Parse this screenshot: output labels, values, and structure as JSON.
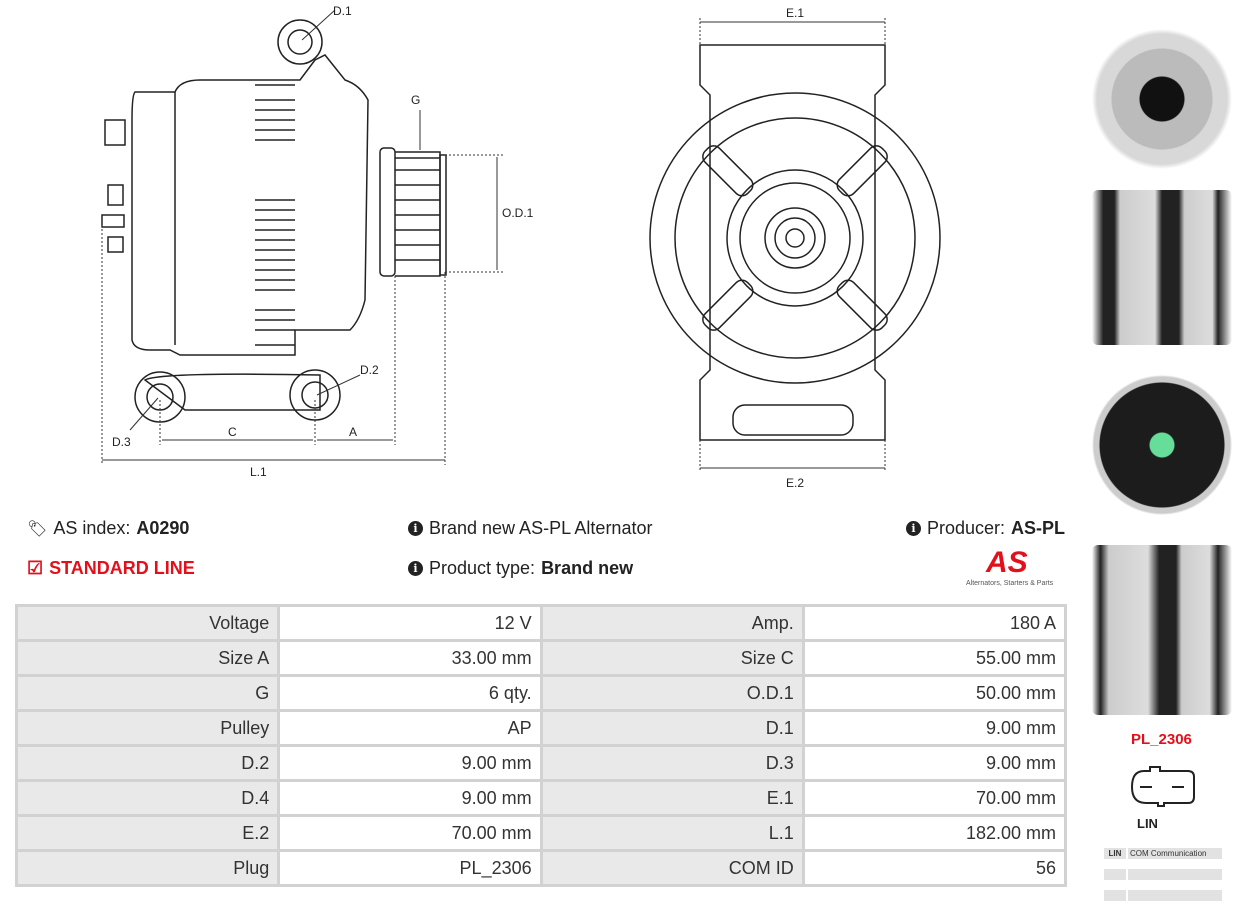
{
  "drawing_left": {
    "labels": {
      "d1": "D.1",
      "g": "G",
      "od1": "O.D.1",
      "d2": "D.2",
      "d3": "D.3",
      "c": "C",
      "a": "A",
      "l1": "L.1"
    }
  },
  "drawing_front": {
    "labels": {
      "e1": "E.1",
      "e2": "E.2"
    }
  },
  "info": {
    "as_index_label": "AS index:",
    "as_index_value": "A0290",
    "standard_line": "STANDARD LINE",
    "description": "Brand new AS-PL Alternator",
    "product_type_label": "Product type:",
    "product_type_value": "Brand new",
    "producer_label": "Producer:",
    "producer_value": "AS-PL",
    "logo_text": "AS",
    "logo_tagline": "Alternators, Starters & Parts",
    "accent_color": "#e3101b"
  },
  "specs": [
    [
      {
        "label": "Voltage",
        "value": "12 V"
      },
      {
        "label": "Amp.",
        "value": "180 A"
      }
    ],
    [
      {
        "label": "Size A",
        "value": "33.00 mm"
      },
      {
        "label": "Size C",
        "value": "55.00 mm"
      }
    ],
    [
      {
        "label": "G",
        "value": "6 qty."
      },
      {
        "label": "O.D.1",
        "value": "50.00 mm"
      }
    ],
    [
      {
        "label": "Pulley",
        "value": "AP"
      },
      {
        "label": "D.1",
        "value": "9.00 mm"
      }
    ],
    [
      {
        "label": "D.2",
        "value": "9.00 mm"
      },
      {
        "label": "D.3",
        "value": "9.00 mm"
      }
    ],
    [
      {
        "label": "D.4",
        "value": "9.00 mm"
      },
      {
        "label": "E.1",
        "value": "70.00 mm"
      }
    ],
    [
      {
        "label": "E.2",
        "value": "70.00 mm"
      },
      {
        "label": "L.1",
        "value": "182.00 mm"
      }
    ],
    [
      {
        "label": "Plug",
        "value": "PL_2306"
      },
      {
        "label": "COM ID",
        "value": "56"
      }
    ]
  ],
  "connector": {
    "plug_code": "PL_2306",
    "plug_type": "LIN",
    "pins": [
      {
        "pin": "LIN",
        "desc": "COM Communication"
      },
      {
        "pin": "",
        "desc": ""
      },
      {
        "pin": "",
        "desc": ""
      }
    ]
  }
}
